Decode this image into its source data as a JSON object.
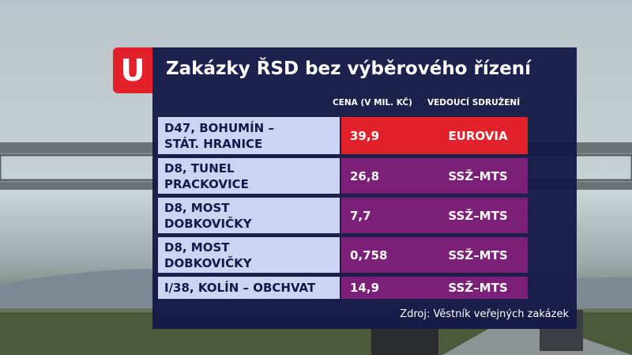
{
  "header": {
    "logo": "U",
    "title": "Zakázky ŘSD bez výběrového řízení"
  },
  "table": {
    "columns": [
      "CENA (V MIL. KČ)",
      "VEDOUCÍ SDRUŽENÍ"
    ],
    "rows": [
      {
        "name": [
          "D47, BOHUMÍN –",
          "STÁT. HRANICE"
        ],
        "price": "39,9",
        "leader": "EUROVIA",
        "color": "#e3212b"
      },
      {
        "name": [
          "D8, TUNEL",
          "PRACKOVICE"
        ],
        "price": "26,8",
        "leader": "SSŽ–MTS",
        "color": "#7b1f78"
      },
      {
        "name": [
          "D8, MOST",
          "DOBKOVIČKY"
        ],
        "price": "7,7",
        "leader": "SSŽ–MTS",
        "color": "#7b1f78"
      },
      {
        "name": [
          "D8, MOST",
          "DOBKOVIČKY"
        ],
        "price": "0,758",
        "leader": "SSŽ–MTS",
        "color": "#7b1f78"
      },
      {
        "name": [
          "I/38,  KOLÍN – OBCHVAT"
        ],
        "price": "14,9",
        "leader": "SSŽ–MTS",
        "color": "#7b1f78"
      }
    ]
  },
  "footer": {
    "source": "Zdroj: Věstník veřejných zakázek"
  }
}
